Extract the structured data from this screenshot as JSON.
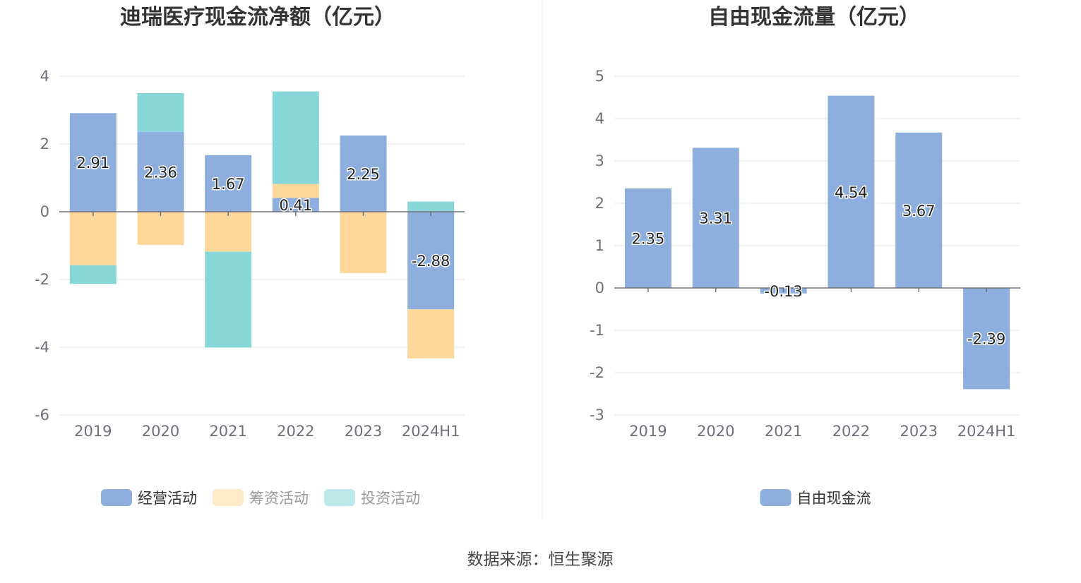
{
  "source_text": "数据来源：恒生聚源",
  "chart_data": [
    {
      "type": "bar",
      "stacked": true,
      "title": "迪瑞医疗现金流净额（亿元）",
      "categories": [
        "2019",
        "2020",
        "2021",
        "2022",
        "2023",
        "2024H1"
      ],
      "ylim": [
        -6,
        4
      ],
      "yticks": [
        4,
        2,
        0,
        -2,
        -4,
        -6
      ],
      "grid": true,
      "legend_position": "bottom",
      "series": [
        {
          "name": "经营活动",
          "color": "#8eaedd",
          "values": [
            2.91,
            2.36,
            1.67,
            0.41,
            2.25,
            -2.88
          ],
          "labels": [
            "2.91",
            "2.36",
            "1.67",
            "0.41",
            "2.25",
            "-2.88"
          ]
        },
        {
          "name": "筹资活动",
          "color": "#fed89b",
          "values": [
            -1.58,
            -0.98,
            -1.18,
            0.41,
            -1.81,
            -1.45
          ]
        },
        {
          "name": "投资活动",
          "color": "#87d7d8",
          "values": [
            -0.55,
            1.14,
            -2.83,
            2.73,
            0,
            0.3
          ]
        }
      ]
    },
    {
      "type": "bar",
      "title": "自由现金流量（亿元）",
      "categories": [
        "2019",
        "2020",
        "2021",
        "2022",
        "2023",
        "2024H1"
      ],
      "ylim": [
        -3,
        5
      ],
      "yticks": [
        5,
        4,
        3,
        2,
        1,
        0,
        -1,
        -2,
        -3
      ],
      "grid": true,
      "legend_position": "bottom",
      "series": [
        {
          "name": "自由现金流",
          "color": "#8eaedd",
          "values": [
            2.35,
            3.31,
            -0.13,
            4.54,
            3.67,
            -2.39
          ],
          "labels": [
            "2.35",
            "3.31",
            "-0.13",
            "4.54",
            "3.67",
            "-2.39"
          ]
        }
      ]
    }
  ]
}
